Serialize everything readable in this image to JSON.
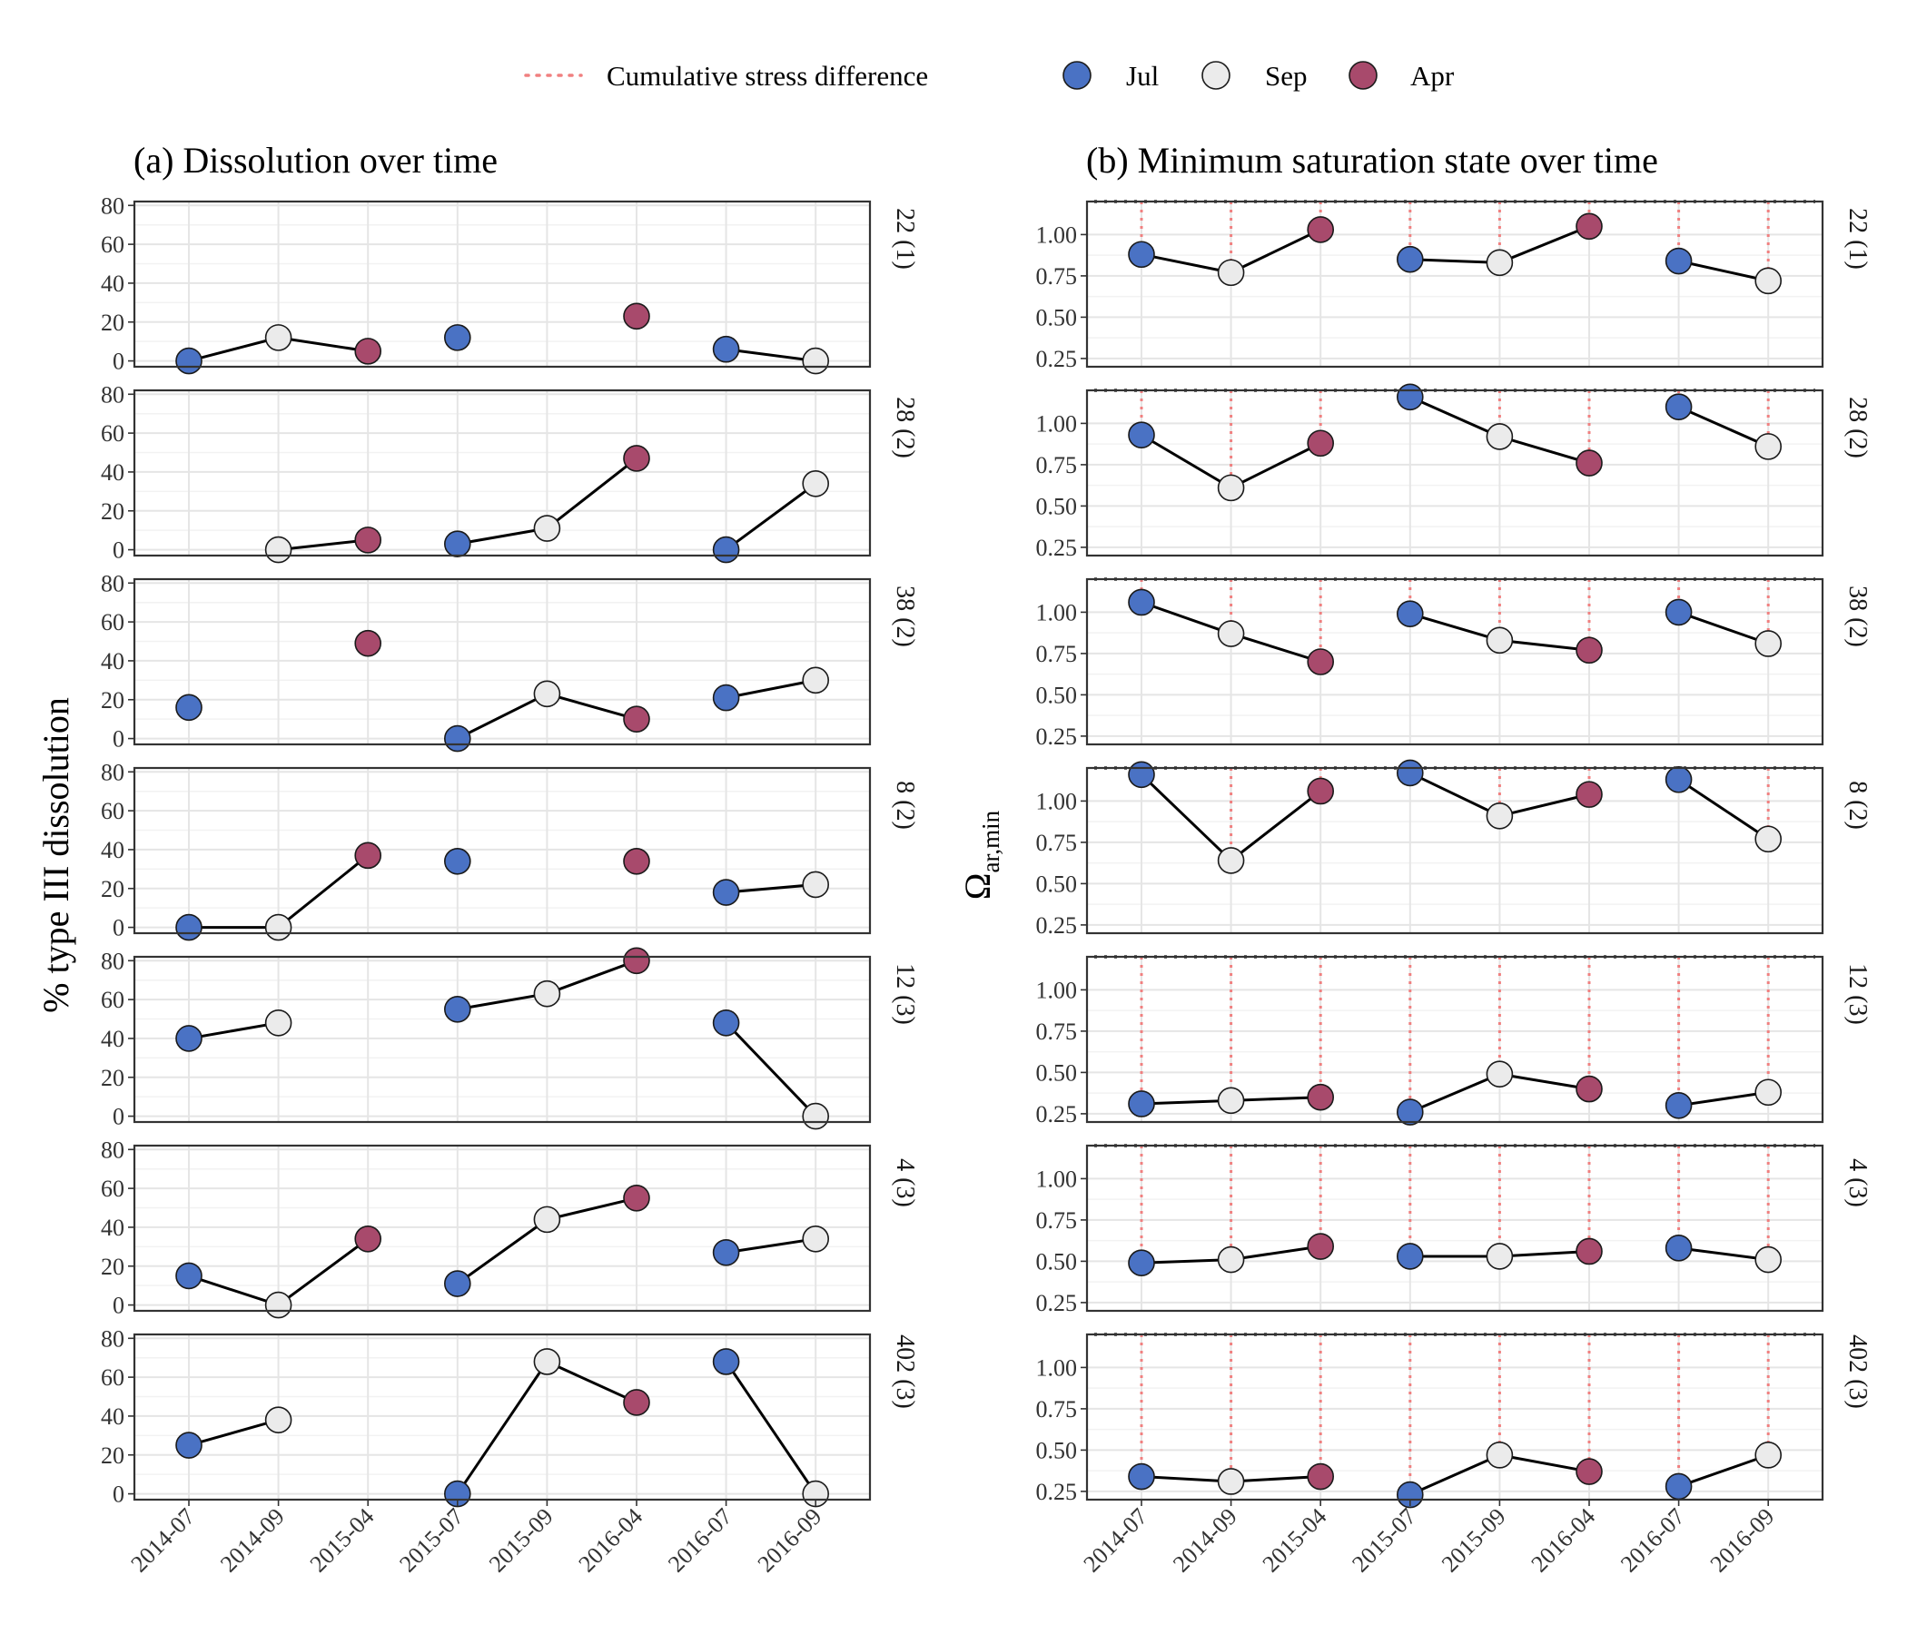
{
  "legend": {
    "line_label": "Cumulative stress difference",
    "line_color": "#f08080",
    "items": [
      {
        "label": "Jul",
        "color": "#4a72c4"
      },
      {
        "label": "Sep",
        "color": "#ebebeb"
      },
      {
        "label": "Apr",
        "color": "#a84a6c"
      }
    ]
  },
  "chart_data": [
    {
      "type": "line",
      "title": "(a) Dissolution over time",
      "ylabel": "% type III dissolution",
      "xlabel": "",
      "ylim": [
        -3,
        82
      ],
      "yticks": [
        0,
        20,
        40,
        60,
        80
      ],
      "ytick_labels": [
        "0",
        "20",
        "40",
        "60",
        "80"
      ],
      "x": [
        "2014-07",
        "2014-09",
        "2015-04",
        "2015-07",
        "2015-09",
        "2016-04",
        "2016-07",
        "2016-09"
      ],
      "season_of_x": [
        "Jul",
        "Sep",
        "Apr",
        "Jul",
        "Sep",
        "Apr",
        "Jul",
        "Sep"
      ],
      "grid": true,
      "facets": [
        {
          "label": "22 (1)",
          "values": [
            0,
            12,
            5,
            12,
            null,
            23,
            6,
            0
          ]
        },
        {
          "label": "28 (2)",
          "values": [
            null,
            0,
            5,
            3,
            11,
            47,
            0,
            34
          ]
        },
        {
          "label": "38 (2)",
          "values": [
            16,
            null,
            49,
            0,
            23,
            10,
            21,
            30
          ]
        },
        {
          "label": "8 (2)",
          "values": [
            0,
            0,
            37,
            34,
            null,
            34,
            18,
            22
          ]
        },
        {
          "label": "12 (3)",
          "values": [
            40,
            48,
            null,
            55,
            63,
            80,
            48,
            0
          ]
        },
        {
          "label": "4 (3)",
          "values": [
            15,
            0,
            34,
            11,
            44,
            55,
            27,
            34
          ]
        },
        {
          "label": "402 (3)",
          "values": [
            25,
            38,
            null,
            0,
            68,
            47,
            68,
            0
          ]
        }
      ]
    },
    {
      "type": "line",
      "title": "(b) Minimum saturation state over time",
      "ylabel": "Ω",
      "ylabel_sub": "ar,min",
      "xlabel": "",
      "ylim": [
        0.2,
        1.2
      ],
      "yticks": [
        0.25,
        0.5,
        0.75,
        1.0
      ],
      "ytick_labels": [
        "0.25",
        "0.50",
        "0.75",
        "1.00"
      ],
      "threshold_line": 1.2,
      "x": [
        "2014-07",
        "2014-09",
        "2015-04",
        "2015-07",
        "2015-09",
        "2016-04",
        "2016-07",
        "2016-09"
      ],
      "season_of_x": [
        "Jul",
        "Sep",
        "Apr",
        "Jul",
        "Sep",
        "Apr",
        "Jul",
        "Sep"
      ],
      "grid": true,
      "facets": [
        {
          "label": "22 (1)",
          "values": [
            0.88,
            0.77,
            1.03,
            0.85,
            0.83,
            1.05,
            0.84,
            0.72
          ]
        },
        {
          "label": "28 (2)",
          "values": [
            0.93,
            0.61,
            0.88,
            1.16,
            0.92,
            0.76,
            1.1,
            0.86
          ]
        },
        {
          "label": "38 (2)",
          "values": [
            1.06,
            0.87,
            0.7,
            0.99,
            0.83,
            0.77,
            1.0,
            0.81
          ]
        },
        {
          "label": "8 (2)",
          "values": [
            1.16,
            0.64,
            1.06,
            1.17,
            0.91,
            1.04,
            1.13,
            0.77
          ]
        },
        {
          "label": "12 (3)",
          "values": [
            0.31,
            0.33,
            0.35,
            0.26,
            0.49,
            0.4,
            0.3,
            0.38
          ]
        },
        {
          "label": "4 (3)",
          "values": [
            0.49,
            0.51,
            0.59,
            0.53,
            0.53,
            0.56,
            0.58,
            0.51
          ]
        },
        {
          "label": "402 (3)",
          "values": [
            0.34,
            0.31,
            0.34,
            0.23,
            0.47,
            0.37,
            0.28,
            0.47
          ]
        }
      ]
    }
  ]
}
